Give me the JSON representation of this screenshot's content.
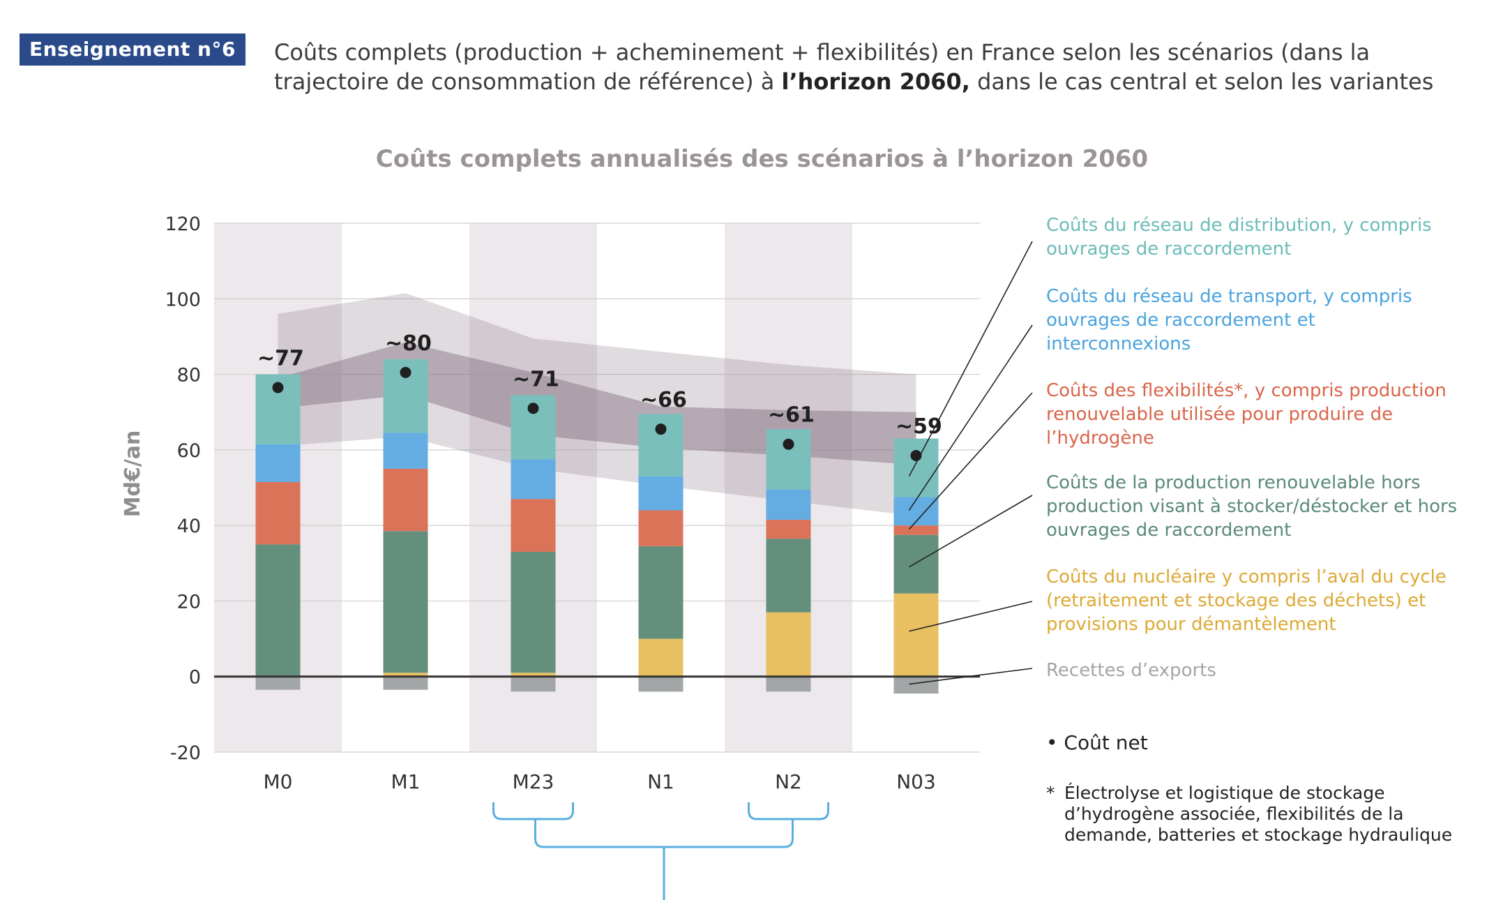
{
  "header": {
    "badge": "Enseignement n°6",
    "title_line1": "Coûts complets (production + acheminement + flexibilités) en France selon les scénarios (dans la",
    "title_line2_pre": "trajectoire de consommation de référence) à ",
    "title_line2_bold": "l’horizon 2060,",
    "title_line2_post": " dans le cas central et selon les variantes"
  },
  "chart_data": {
    "type": "bar",
    "title": "Coûts complets annualisés des scénarios à l’horizon 2060",
    "ylabel": "Md€/an",
    "ylim": [
      -20,
      120
    ],
    "yticks": [
      -20,
      0,
      20,
      40,
      60,
      80,
      100,
      120
    ],
    "categories": [
      "M0",
      "M1",
      "M23",
      "N1",
      "N2",
      "N03"
    ],
    "stacked": true,
    "grid": "horizontal",
    "series": [
      {
        "key": "exports",
        "color": "#a3a6a7",
        "values": [
          -3.5,
          -3.5,
          -4,
          -4,
          -4,
          -4.5
        ]
      },
      {
        "key": "nucleaire",
        "color": "#e8c061",
        "values": [
          0,
          1,
          1,
          10,
          17,
          22
        ]
      },
      {
        "key": "renouvelable",
        "color": "#648f7d",
        "values": [
          35,
          37.5,
          32,
          24.5,
          19.5,
          15.5
        ]
      },
      {
        "key": "flexibilites",
        "color": "#db7359",
        "values": [
          16.5,
          16.5,
          14,
          9.5,
          5,
          2.5
        ]
      },
      {
        "key": "transport",
        "color": "#63ade3",
        "values": [
          10,
          9.5,
          10.5,
          9,
          8,
          7.5
        ]
      },
      {
        "key": "distribution",
        "color": "#7bbfbd",
        "values": [
          18.5,
          19.5,
          17,
          16.5,
          16,
          15.5
        ]
      }
    ],
    "net_values": [
      76.5,
      80.5,
      71,
      65.5,
      61.5,
      58.5
    ],
    "net_labels": [
      "~77",
      "~80",
      "~71",
      "~66",
      "~61",
      "~59"
    ],
    "band_outer": {
      "low": [
        61,
        63.5,
        55,
        50.5,
        46.5,
        42.5
      ],
      "high": [
        96,
        101.5,
        89.5,
        86,
        82.5,
        80
      ]
    },
    "band_inner": {
      "low": [
        71,
        74.5,
        64,
        60.5,
        58.5,
        56
      ],
      "high": [
        79,
        88.5,
        80.5,
        71.5,
        70.5,
        70
      ]
    },
    "shaded_columns": [
      "M0",
      "M23",
      "N2"
    ]
  },
  "legend": {
    "distribution": "Coûts du réseau de distribution, y compris ouvrages de raccordement",
    "transport": "Coûts du réseau de transport, y compris ouvrages de raccordement et interconnexions",
    "flexibilites": "Coûts des flexibilités*, y compris production renouvelable utilisée pour produire de l’hydrogène",
    "renouvelable": "Coûts de la production renouvelable hors production visant à stocker/déstocker et hors ouvrages de raccordement",
    "nucleaire": "Coûts du nucléaire y compris l’aval du cycle (retraitement et stockage des déchets) et provisions pour démantèlement",
    "exports": "Recettes d’exports",
    "colors": {
      "distribution": "#6bbcb8",
      "transport": "#4aa3de",
      "flexibilites": "#d9654a",
      "renouvelable": "#5a8a76",
      "nucleaire": "#dca934",
      "exports": "#a3a6a7"
    }
  },
  "net_legend": "Coût net",
  "footnote": {
    "star": "*",
    "text": "Électrolyse et logistique de stockage d’hydrogène associée, flexibilités de la demande, batteries et stockage hydraulique"
  }
}
